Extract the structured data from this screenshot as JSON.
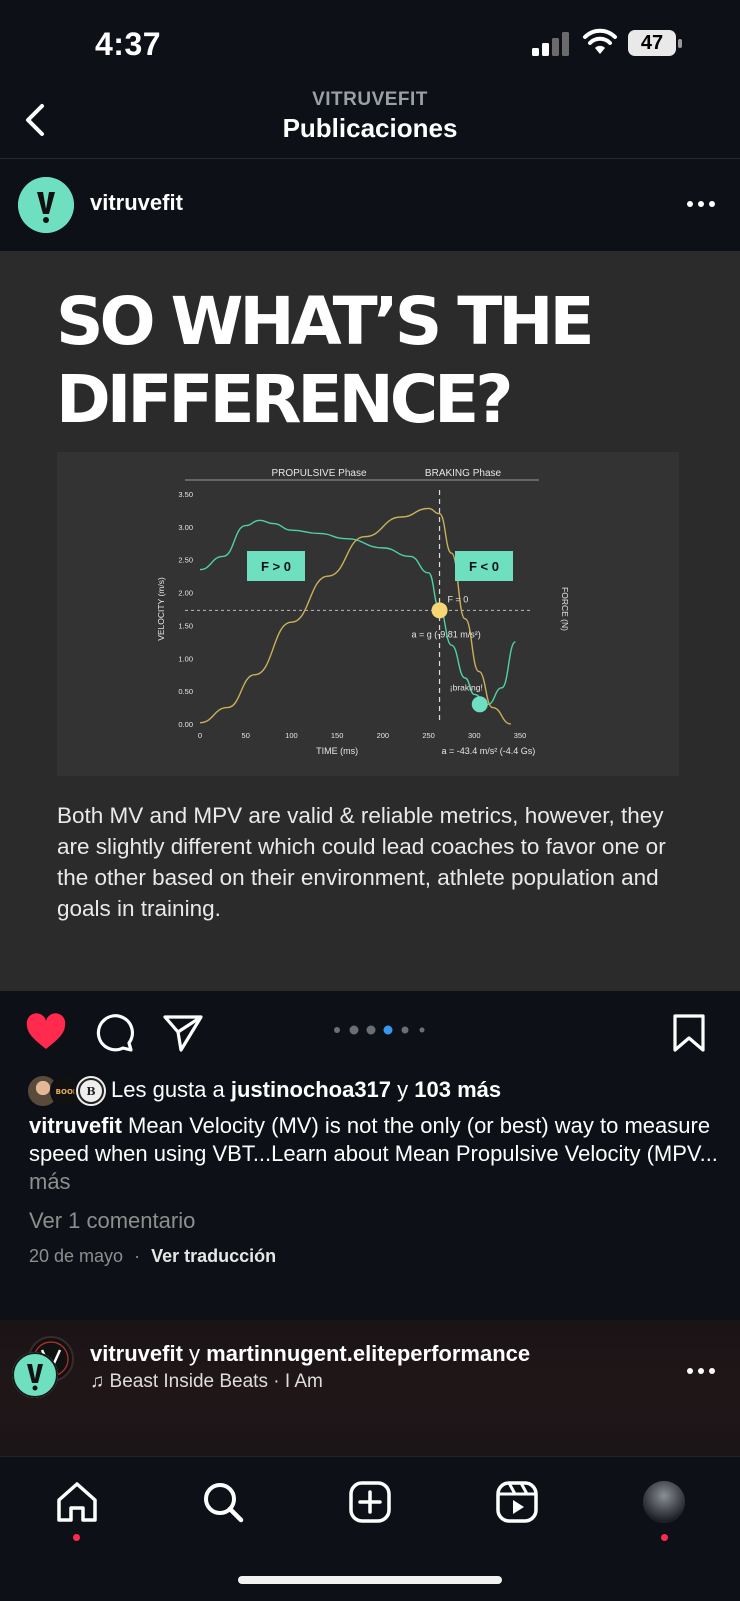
{
  "status": {
    "time": "4:37",
    "battery": "47"
  },
  "nav": {
    "subtitle": "VITRUVEFIT",
    "title": "Publicaciones"
  },
  "post": {
    "username": "vitruvefit",
    "headline_line1": "SO WHAT’S THE",
    "headline_line2": "DIFFERENCE?",
    "body": "Both MV and MPV are valid & reliable metrics, however, they are slightly different which could lead coaches to favor one or the other based on their environment, athlete population and goals in training.",
    "likes_prefix": "Les gusta a",
    "likes_user": "justinochoa317",
    "likes_and": "y",
    "likes_count": "103 más",
    "caption_user": "vitruvefit",
    "caption_text": "Mean Velocity (MV) is not the only (or best) way to measure speed when using VBT...Learn about Mean Propulsive Velocity (MPV...",
    "caption_more": "más",
    "comments_link": "Ver 1 comentario",
    "date": "20 de mayo",
    "translate": "Ver traducción",
    "carousel_count": 6,
    "carousel_active": 3
  },
  "next_post": {
    "user1": "vitruvefit",
    "joiner": "y",
    "user2": "martinnugent.eliteperformance",
    "song": "Beast Inside Beats · I Am"
  },
  "chart_data": {
    "type": "line",
    "phase_left": "PROPULSIVE Phase",
    "phase_right": "BRAKING Phase",
    "xlabel": "TIME (ms)",
    "ylabel_left": "VELOCITY (m/s)",
    "ylabel_right": "FORCE (N)",
    "x_ticks": [
      0,
      50,
      100,
      150,
      200,
      250,
      300,
      350
    ],
    "y_ticks": [
      "0.00",
      "0.50",
      "1.00",
      "1.50",
      "2.00",
      "2.50",
      "3.00",
      "3.50"
    ],
    "xlim": [
      0,
      350
    ],
    "ylim": [
      0,
      3.5
    ],
    "series": [
      {
        "color": "#4fd1a5",
        "x": [
          0,
          25,
          50,
          65,
          80,
          100,
          130,
          160,
          200,
          230,
          250,
          262,
          275,
          290,
          300,
          315,
          330,
          345
        ],
        "y": [
          2.35,
          2.55,
          3.02,
          3.1,
          3.05,
          2.95,
          2.9,
          2.82,
          2.68,
          2.55,
          2.3,
          1.75,
          1.2,
          0.7,
          0.45,
          0.3,
          0.55,
          1.25
        ]
      },
      {
        "color": "#c9b15a",
        "x": [
          0,
          30,
          60,
          100,
          140,
          180,
          220,
          250,
          262,
          275,
          290,
          305,
          320,
          340
        ],
        "y": [
          0.02,
          0.25,
          0.75,
          1.55,
          2.25,
          2.85,
          3.15,
          3.28,
          3.2,
          2.6,
          1.6,
          0.8,
          0.25,
          0.0
        ]
      }
    ],
    "vline_x": 262,
    "hline_y": 1.73,
    "f_pos_label": "F > 0",
    "f_neg_label": "F < 0",
    "f_zero_label": "F = 0",
    "a_g_label": "a = g (-9.81 m/s²)",
    "braking_label": "¡braking!",
    "a_brake_label": "a = -43.4 m/s²  (-4.4 Gs)",
    "point_zero": {
      "x": 262,
      "y": 1.73,
      "color": "#f7d774"
    },
    "point_braking": {
      "x": 306,
      "y": 0.3,
      "color": "#6fe0bf"
    },
    "badge_color": "#6fe0bf"
  }
}
